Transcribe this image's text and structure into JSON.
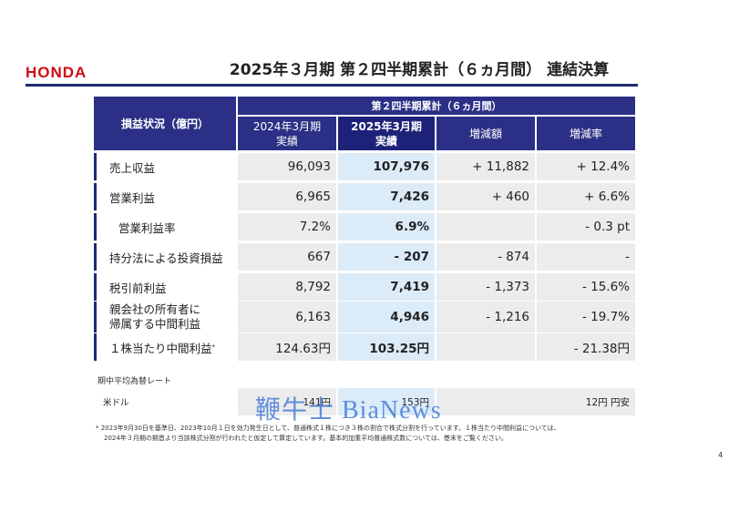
{
  "header": {
    "logo": "HONDA",
    "title": "2025年３月期 第２四半期累計（６ヵ月間） 連結決算"
  },
  "table": {
    "corner_label": "損益状況（億円）",
    "group_header": "第２四半期累計（６ヵ月間）",
    "columns": [
      {
        "line1": "2024年3月期",
        "line2": "実績"
      },
      {
        "line1": "2025年3月期",
        "line2": "実績"
      },
      {
        "line1": "増減額",
        "line2": ""
      },
      {
        "line1": "増減率",
        "line2": ""
      }
    ],
    "rows": [
      {
        "label": "売上収益",
        "label2": "",
        "prev": "96,093",
        "curr": "107,976",
        "diff": "+ 11,882",
        "rate": "+ 12.4%"
      },
      {
        "label": "営業利益",
        "label2": "",
        "prev": "6,965",
        "curr": "7,426",
        "diff": "+ 460",
        "rate": "+ 6.6%"
      },
      {
        "label": "営業利益率",
        "label2": "",
        "prev": "7.2%",
        "curr": "6.9%",
        "diff": "",
        "rate": "- 0.3 pt"
      },
      {
        "label": "持分法による投資損益",
        "label2": "",
        "prev": "667",
        "curr": "- 207",
        "diff": "- 874",
        "rate": "-"
      },
      {
        "label": "税引前利益",
        "label2": "",
        "prev": "8,792",
        "curr": "7,419",
        "diff": "- 1,373",
        "rate": "- 15.6%"
      },
      {
        "label": "親会社の所有者に",
        "label2": "帰属する中間利益",
        "prev": "6,163",
        "curr": "4,946",
        "diff": "- 1,216",
        "rate": "- 19.7%"
      },
      {
        "label": "１株当たり中間利益",
        "label2": "",
        "footnote_mark": "*",
        "prev": "124.63円",
        "curr": "103.25円",
        "diff": "",
        "rate": "- 21.38円"
      }
    ]
  },
  "fx": {
    "title": "期中平均為替レート",
    "label": "米ドル",
    "prev": "141円",
    "curr": "153円",
    "change": "12円 円安"
  },
  "watermark": "鞭牛士 BiaNews",
  "footnote": {
    "line1": "*  2023年9月30日を基準日、2023年10月１日を効力発生日として、普通株式１株につき３株の割合で株式分割を行っています。１株当たり中間利益については、",
    "line2": "2024年３月期の期首より当該株式分割が行われたと仮定して算定しています。基本的加重平均普通株式数については、巻末をご覧ください。"
  },
  "page_number": "4"
}
